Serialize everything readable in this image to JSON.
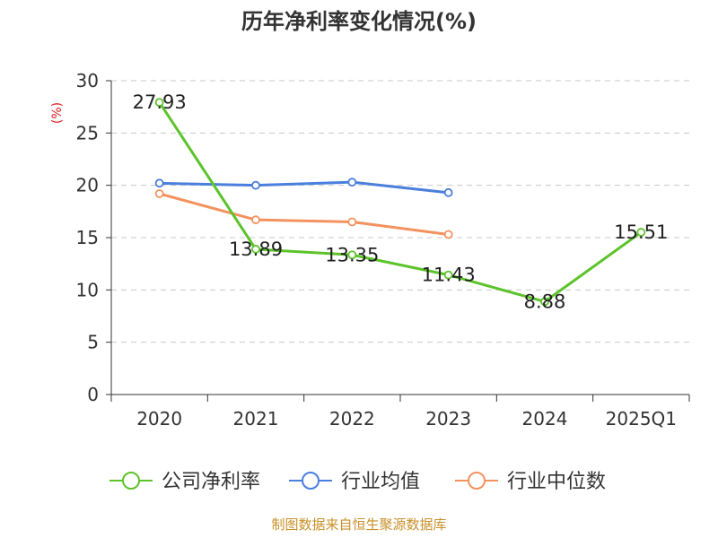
{
  "chart_data": {
    "type": "line",
    "title": "历年净利率变化情况(%)",
    "ylabel": "(%)",
    "ylim": [
      0,
      30
    ],
    "yticks": [
      0,
      5,
      10,
      15,
      20,
      25,
      30
    ],
    "grid": true,
    "legend_position": "bottom",
    "categories": [
      "2020",
      "2021",
      "2022",
      "2023",
      "2024",
      "2025Q1"
    ],
    "series": [
      {
        "name": "公司净利率",
        "color": "#5cc32a",
        "values": [
          27.93,
          13.89,
          13.35,
          11.43,
          8.88,
          15.51
        ],
        "labels": [
          "27.93",
          "13.89",
          "13.35",
          "11.43",
          "8.88",
          "15.51"
        ]
      },
      {
        "name": "行业均值",
        "color": "#4a7fdc",
        "values": [
          20.2,
          20.0,
          20.3,
          19.3,
          null,
          null
        ]
      },
      {
        "name": "行业中位数",
        "color": "#f4925e",
        "values": [
          19.2,
          16.7,
          16.5,
          15.3,
          null,
          null
        ]
      }
    ]
  },
  "source": "制图数据来自恒生聚源数据库"
}
